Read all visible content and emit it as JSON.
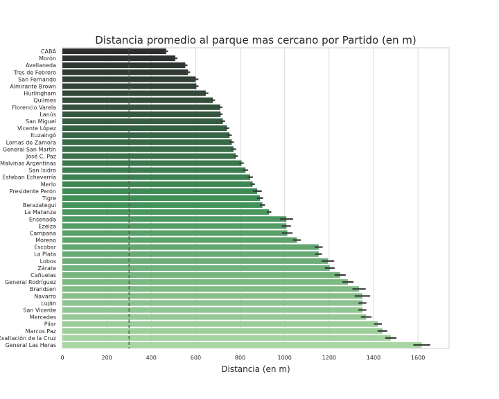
{
  "chart_data": {
    "type": "bar",
    "orientation": "horizontal",
    "title": "Distancia promedio al parque mas cercano por Partido (en m)",
    "xlabel": "Distancia (en m)",
    "ylabel": "",
    "xlim": [
      0,
      1740
    ],
    "xticks": [
      0,
      200,
      400,
      600,
      800,
      1000,
      1200,
      1400,
      1600
    ],
    "grid": "vertical",
    "reference_line": {
      "value": 300,
      "style": "dashed"
    },
    "palette": {
      "start": "#2d2d2d",
      "mid": "#3f8f57",
      "end": "#a8d6a2"
    },
    "categories": [
      "CABA",
      "Morón",
      "Avellaneda",
      "Tres de Febrero",
      "San Fernando",
      "Almirante Brown",
      "Hurlingham",
      "Quilmes",
      "Florencio Varela",
      "Lanús",
      "San Miguel",
      "Vicente López",
      "Ituzaingó",
      "Lomas de Zamora",
      "General San Martín",
      "José C. Paz",
      "Malvinas Argentinas",
      "San Isidro",
      "Esteban Echeverría",
      "Merlo",
      "Presidente Perón",
      "Tigre",
      "Berazategui",
      "La Matanza",
      "Ensenada",
      "Ezeiza",
      "Campana",
      "Moreno",
      "Escobar",
      "La Plata",
      "Lobos",
      "Zárate",
      "Cañuelas",
      "General Rodríguez",
      "Brandsen",
      "Navarro",
      "Luján",
      "San Vicente",
      "Mercedes",
      "Pilar",
      "Marcos Paz",
      "Exaltación de la Cruz",
      "General Las Heras"
    ],
    "values": [
      467,
      508,
      553,
      565,
      600,
      603,
      645,
      677,
      710,
      712,
      722,
      740,
      752,
      762,
      770,
      780,
      806,
      824,
      845,
      856,
      877,
      889,
      900,
      930,
      1008,
      1008,
      1012,
      1055,
      1153,
      1153,
      1195,
      1203,
      1250,
      1285,
      1335,
      1350,
      1350,
      1350,
      1367,
      1420,
      1440,
      1478,
      1617
    ],
    "error": [
      8,
      10,
      10,
      10,
      12,
      10,
      12,
      10,
      10,
      8,
      10,
      10,
      10,
      10,
      12,
      10,
      10,
      12,
      12,
      10,
      20,
      14,
      12,
      10,
      30,
      20,
      24,
      18,
      18,
      15,
      28,
      22,
      25,
      25,
      30,
      35,
      18,
      18,
      24,
      18,
      22,
      25,
      38
    ]
  }
}
